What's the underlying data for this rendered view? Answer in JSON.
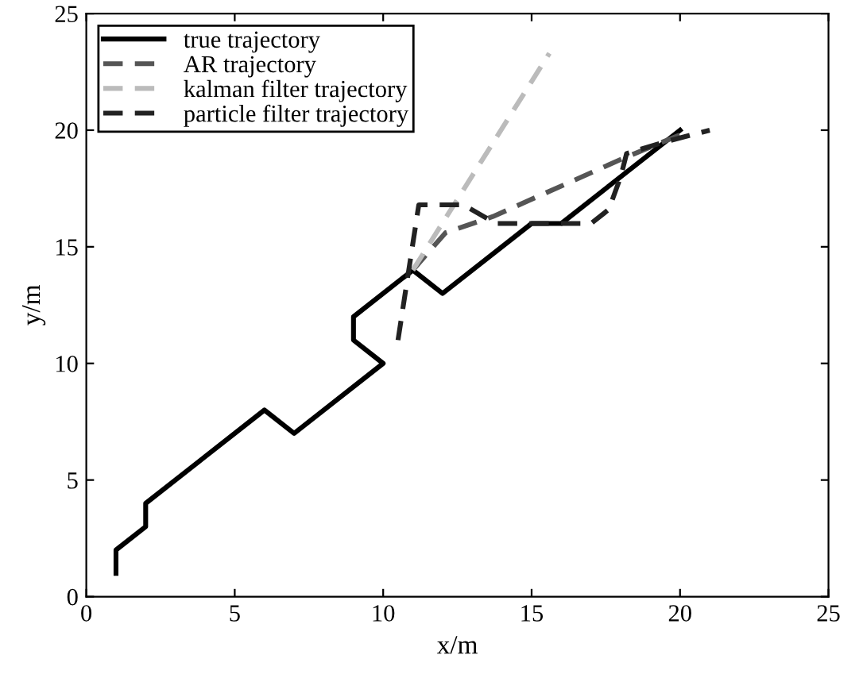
{
  "chart_data": {
    "type": "line",
    "xlabel": "x/m",
    "ylabel": "y/m",
    "xlim": [
      0,
      25
    ],
    "ylim": [
      0,
      25
    ],
    "xticks": [
      0,
      5,
      10,
      15,
      20,
      25
    ],
    "yticks": [
      0,
      5,
      10,
      15,
      20,
      25
    ],
    "grid": false,
    "legend": "top left",
    "marker": "none",
    "series": [
      {
        "name": "true trajectory",
        "color": "#000000",
        "line_style": "solid",
        "x": [
          1,
          1,
          2,
          2,
          6,
          7,
          10,
          9,
          9,
          11,
          12,
          15,
          16,
          20
        ],
        "values": [
          1,
          2,
          3,
          4,
          8,
          7,
          10,
          11,
          12,
          14,
          13,
          16,
          16,
          20
        ]
      },
      {
        "name": "AR trajectory",
        "color": "#555555",
        "line_style": "dashed",
        "x": [
          11,
          12.1,
          13.7,
          18.1,
          20
        ],
        "values": [
          14,
          15.6,
          16.3,
          18.8,
          19.8
        ]
      },
      {
        "name": "kalman filter trajectory",
        "color": "#bbbbbb",
        "line_style": "dashed",
        "x": [
          11,
          15.6
        ],
        "values": [
          14,
          23.3
        ]
      },
      {
        "name": "particle filter trajectory",
        "color": "#222222",
        "line_style": "dashed",
        "x": [
          10.5,
          11.2,
          12.7,
          13.8,
          15,
          17,
          17.6,
          18,
          18.2,
          19.5,
          21
        ],
        "values": [
          11,
          16.8,
          16.8,
          16,
          16,
          16,
          16.6,
          18,
          19,
          19.5,
          20
        ]
      }
    ]
  }
}
